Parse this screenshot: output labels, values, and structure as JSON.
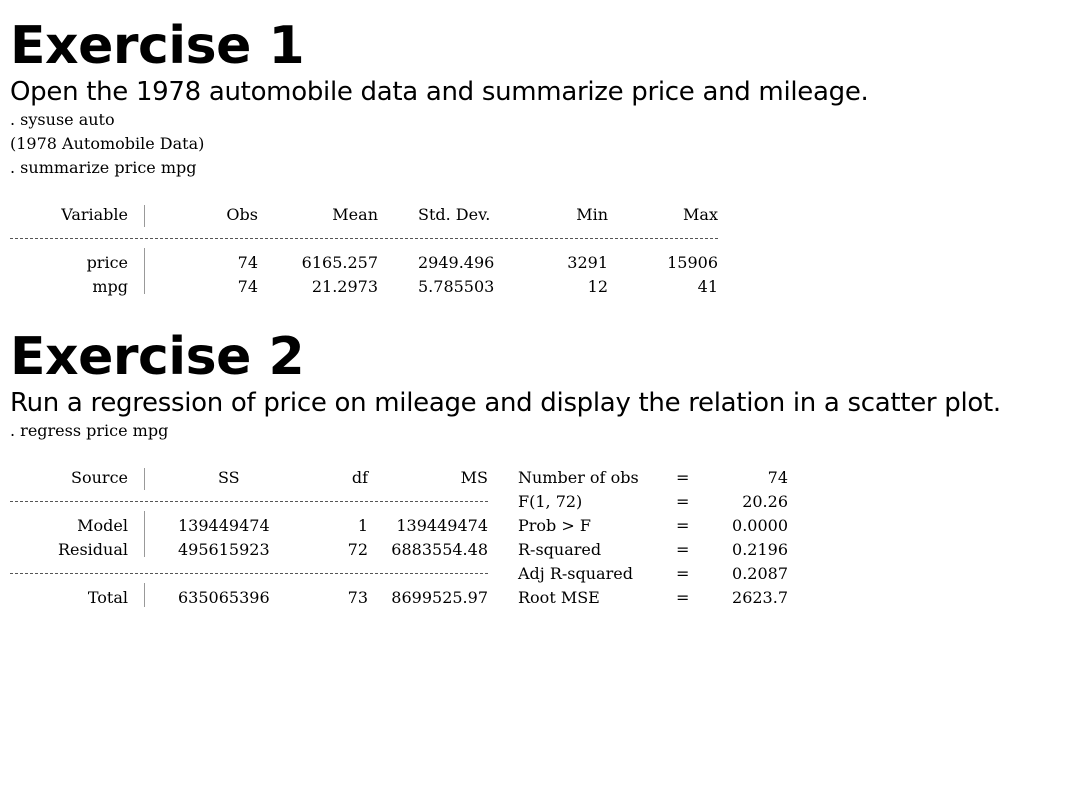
{
  "exercise1": {
    "heading": "Exercise 1",
    "description": "Open the 1978 automobile data and summarize price and mileage.",
    "command1": ". sysuse auto",
    "command1_output": "(1978 Automobile Data)",
    "command2": ". summarize price mpg",
    "summary": {
      "headers": [
        "Variable",
        "Obs",
        "Mean",
        "Std. Dev.",
        "Min",
        "Max"
      ],
      "rows": [
        [
          "price",
          "74",
          "6165.257",
          "2949.496",
          "3291",
          "15906"
        ],
        [
          "mpg",
          "74",
          "21.2973",
          "5.785503",
          "12",
          "41"
        ]
      ]
    }
  },
  "exercise2": {
    "heading": "Exercise 2",
    "description": "Run a regression of price on mileage and display the relation in a scatter plot.",
    "command": ". regress price mpg",
    "anova": {
      "headers": [
        "Source",
        "SS",
        "df",
        "MS"
      ],
      "rows": [
        [
          "Model",
          "139449474",
          "1",
          "139449474"
        ],
        [
          "Residual",
          "495615923",
          "72",
          "6883554.48"
        ],
        [
          "Total",
          "635065396",
          "73",
          "8699525.97"
        ]
      ]
    },
    "stats": [
      {
        "label": "Number of obs",
        "eq": "=",
        "value": "74"
      },
      {
        "label": "F(1, 72)",
        "eq": "=",
        "value": "20.26"
      },
      {
        "label": "Prob > F",
        "eq": "=",
        "value": "0.0000"
      },
      {
        "label": "R-squared",
        "eq": "=",
        "value": "0.2196"
      },
      {
        "label": "Adj R-squared",
        "eq": "=",
        "value": "0.2087"
      },
      {
        "label": "Root MSE",
        "eq": "=",
        "value": "2623.7"
      }
    ]
  }
}
